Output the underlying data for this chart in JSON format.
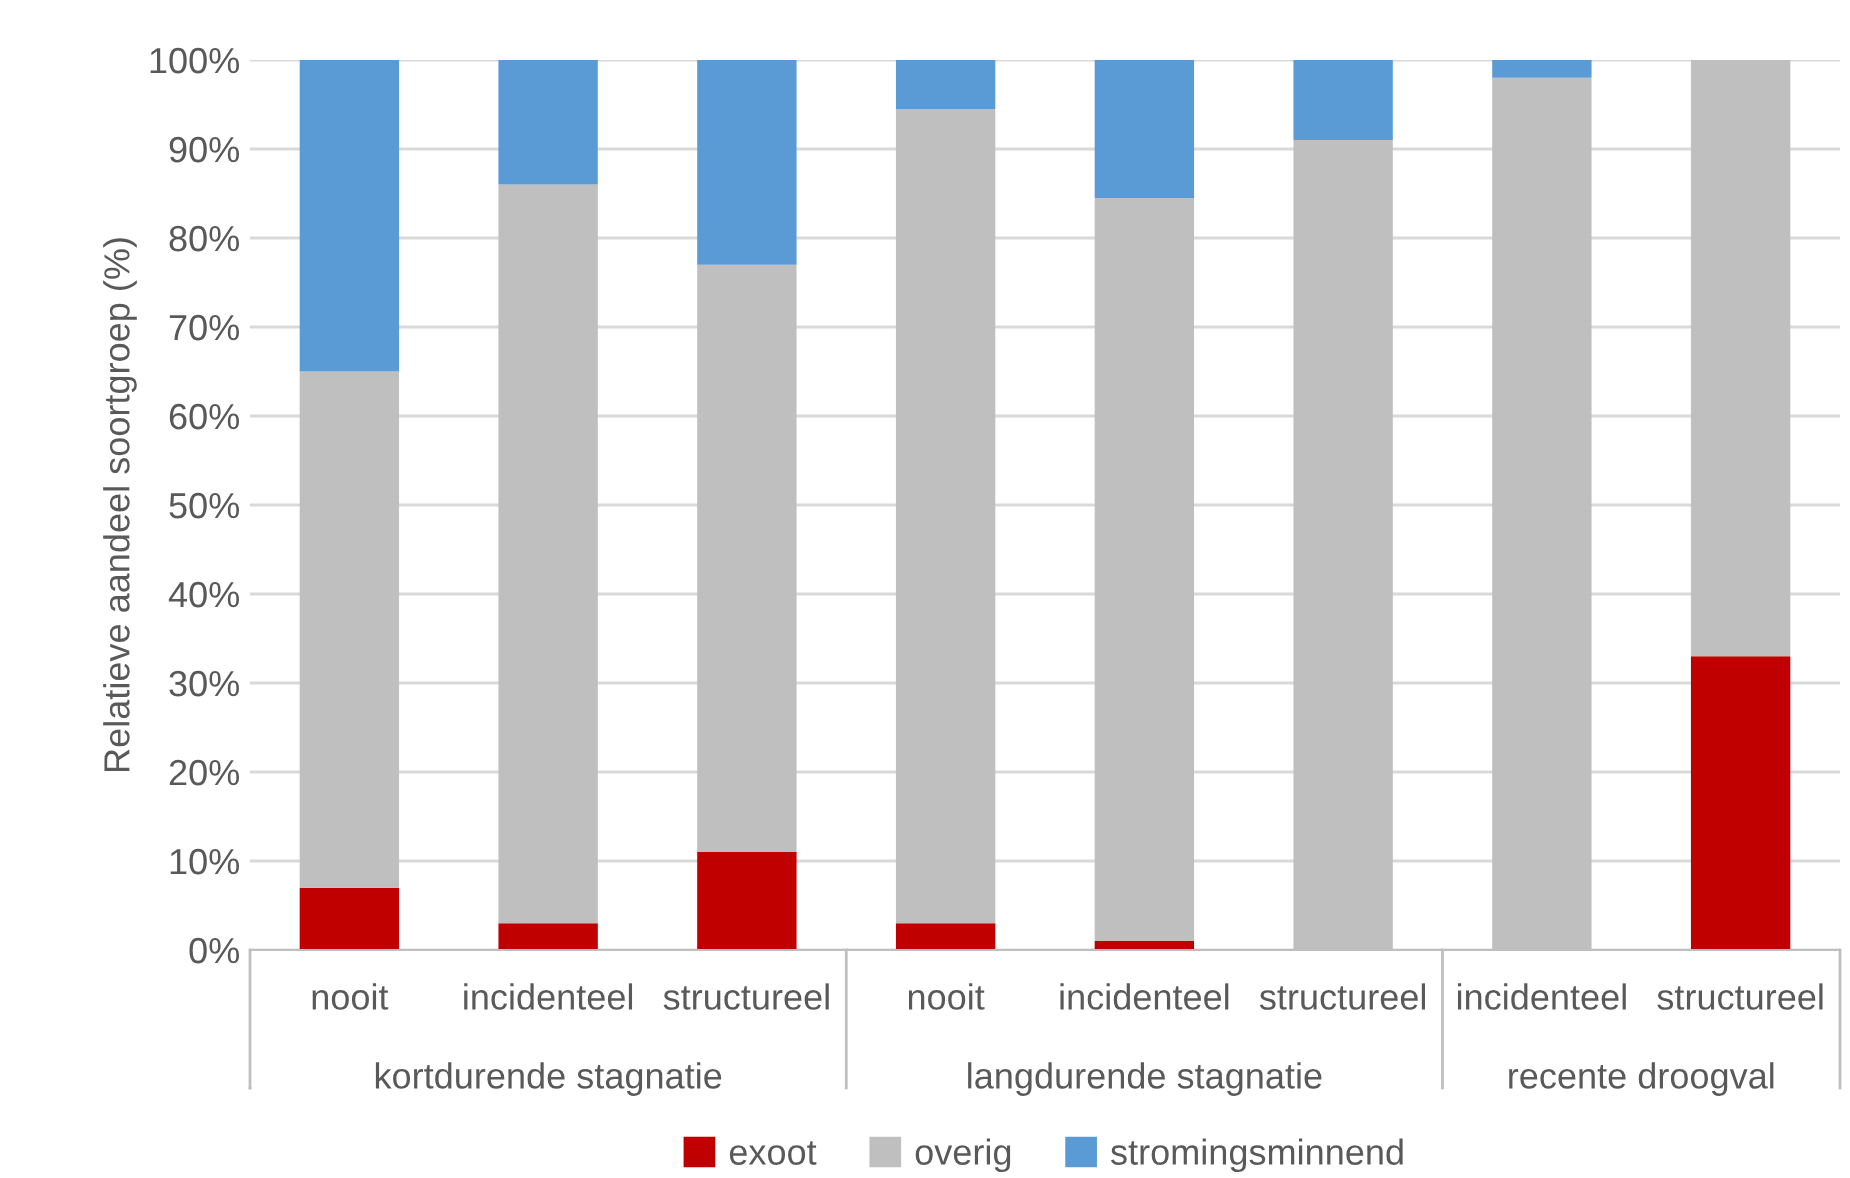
{
  "chart_data": {
    "type": "bar",
    "stacked": true,
    "ylabel": "Relatieve aandeel soortgroep (%)",
    "categories": [
      "nooit",
      "incidenteel",
      "structureel",
      "nooit",
      "incidenteel",
      "structureel",
      "incidenteel",
      "structureel"
    ],
    "series": [
      {
        "name": "exoot",
        "color": "#c00000",
        "values": [
          7,
          3,
          11,
          3,
          1,
          0,
          0,
          33
        ]
      },
      {
        "name": "overig",
        "color": "#bfbfbf",
        "values": [
          58,
          83,
          66,
          91.5,
          83.5,
          91,
          98,
          67
        ]
      },
      {
        "name": "stromingsminnend",
        "color": "#5b9bd5",
        "values": [
          35,
          14,
          23,
          5.5,
          15.5,
          9,
          2,
          0
        ]
      }
    ],
    "ylim": [
      0,
      100
    ],
    "yticks": [
      {
        "value": 0,
        "label": "0%"
      },
      {
        "value": 10,
        "label": "10%"
      },
      {
        "value": 20,
        "label": "20%"
      },
      {
        "value": 30,
        "label": "30%"
      },
      {
        "value": 40,
        "label": "40%"
      },
      {
        "value": 50,
        "label": "50%"
      },
      {
        "value": 60,
        "label": "60%"
      },
      {
        "value": 70,
        "label": "70%"
      },
      {
        "value": 80,
        "label": "80%"
      },
      {
        "value": 90,
        "label": "90%"
      },
      {
        "value": 100,
        "label": "100%"
      }
    ],
    "grid": "y",
    "legend": "bottom",
    "annotations": [
      "kortdurende stagnatie",
      "langdurende stagnatie",
      "recente droogval"
    ]
  }
}
